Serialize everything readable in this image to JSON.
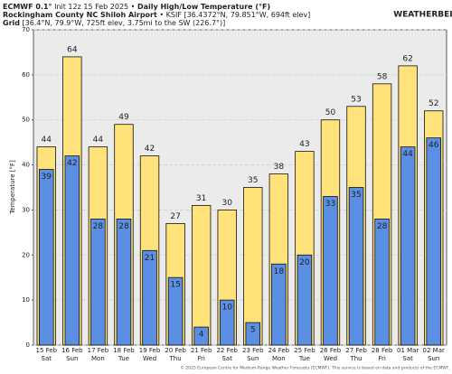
{
  "chart_data": {
    "type": "bar",
    "title": [
      "ECMWF 0.1°",
      "Init 12z 15 Feb 2025 •",
      "Daily High/Low Temperature (°F)"
    ],
    "subtitle": [
      "Rockingham County NC Shiloh Airport",
      "• KSIF [36.4372°N, 79.851°W, 694ft elev]"
    ],
    "grid_info": [
      "Grid",
      "[36.4°N, 79.9°W, 725ft elev, 3.75mi to the SW (226.7°)]"
    ],
    "logo": "WEATHERBELL",
    "footer": "© 2025 European Centre for Medium-Range Weather Forecasts (ECMWF). This service is based on data and products of the ECMWF.",
    "y_label": "Temperature [°F]",
    "categories": [
      [
        "15 Feb",
        "Sat"
      ],
      [
        "16 Feb",
        "Sun"
      ],
      [
        "17 Feb",
        "Mon"
      ],
      [
        "18 Feb",
        "Tue"
      ],
      [
        "19 Feb",
        "Wed"
      ],
      [
        "20 Feb",
        "Thu"
      ],
      [
        "21 Feb",
        "Fri"
      ],
      [
        "22 Feb",
        "Sat"
      ],
      [
        "23 Feb",
        "Sun"
      ],
      [
        "24 Feb",
        "Mon"
      ],
      [
        "25 Feb",
        "Tue"
      ],
      [
        "26 Feb",
        "Wed"
      ],
      [
        "27 Feb",
        "Thu"
      ],
      [
        "28 Feb",
        "Fri"
      ],
      [
        "01 Mar",
        "Sat"
      ],
      [
        "02 Mar",
        "Sun"
      ]
    ],
    "series": [
      {
        "name": "High",
        "color": "#ffe27a",
        "values": [
          44,
          64,
          44,
          49,
          42,
          27,
          31,
          30,
          35,
          38,
          43,
          50,
          53,
          58,
          62,
          52
        ]
      },
      {
        "name": "Low",
        "color": "#5b8fe3",
        "values": [
          39,
          42,
          28,
          28,
          21,
          15,
          4,
          10,
          5,
          18,
          20,
          33,
          35,
          28,
          44,
          46
        ]
      }
    ],
    "ylim": [
      0,
      70
    ],
    "yticks": [
      0,
      10,
      20,
      30,
      40,
      50,
      60,
      70
    ],
    "grid": true
  }
}
